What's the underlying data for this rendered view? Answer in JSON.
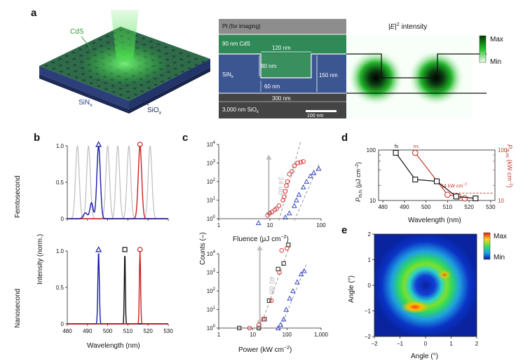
{
  "panels": {
    "a": {
      "letter": "a",
      "device": {
        "cds_label": "CdS",
        "sinx_label": "SiN",
        "sinx_sub": "x",
        "siox_label": "SiO",
        "siox_sub": "x"
      },
      "sem": {
        "pt_label": "Pt (for imaging)",
        "cds_label": "90 nm CdS",
        "w120": "120 nm",
        "h90": "90 nm",
        "h150": "150 nm",
        "w60": "60 nm",
        "sinx_label": "SiN",
        "sinx_sub": "x",
        "w300": "300 nm",
        "sio_label": "3,000 nm SiO",
        "sio_sub": "x",
        "scale_bar": "100 nm"
      },
      "field": {
        "title_pre": "|",
        "title_E": "E",
        "title_post": "|",
        "title_sup": "2",
        "title_rest": " intensity",
        "max": "Max",
        "min": "Min"
      }
    },
    "b": {
      "letter": "b",
      "ylabel": "Intensity (norm.)",
      "row_top": "Femtosecond",
      "row_bottom": "Nanosecond",
      "xlabel": "Wavelength (nm)",
      "xticks": [
        "480",
        "490",
        "500",
        "510",
        "520",
        "530"
      ],
      "yticks": [
        "0",
        "0.5",
        "1.0"
      ],
      "colors": {
        "blue": "#1a1aa8",
        "red": "#cc1f1f",
        "black": "#111111",
        "gray": "#bdbdbd"
      },
      "femto_peaks": {
        "blue_nm": 495.5,
        "red_nm": 516,
        "gray_nm": [
          485,
          490.5,
          500,
          505,
          510.5,
          521
        ]
      },
      "nano_peaks": {
        "blue_nm": 495.5,
        "black_nm": 508.5,
        "red_nm": 516
      }
    },
    "c": {
      "letter": "c",
      "ylabel": "Counts (–)",
      "top": {
        "xlabel_pre": "Fluence (μJ cm",
        "xlabel_sup": "−2",
        "xlabel_post": ")",
        "xticks": [
          "1",
          "10",
          "100"
        ],
        "yticks": [
          "0",
          "1",
          "2",
          "3",
          "4"
        ],
        "ann": "24 dB",
        "red_points": [
          [
            9,
            1.5
          ],
          [
            10,
            2.0
          ],
          [
            11,
            2.3
          ],
          [
            12.5,
            3.0
          ],
          [
            13.5,
            3.5
          ],
          [
            15,
            5
          ],
          [
            18,
            10
          ],
          [
            19,
            15
          ],
          [
            20,
            30
          ],
          [
            21,
            60
          ],
          [
            22,
            100
          ],
          [
            24,
            250
          ],
          [
            27,
            350
          ],
          [
            30,
            700
          ],
          [
            35,
            1000
          ],
          [
            40,
            1100
          ],
          [
            45,
            1200
          ]
        ],
        "blue_points": [
          [
            6,
            0.6
          ],
          [
            20,
            1.2
          ],
          [
            24,
            2
          ],
          [
            30,
            5
          ],
          [
            33,
            10
          ],
          [
            37,
            20
          ],
          [
            45,
            50
          ],
          [
            52,
            100
          ],
          [
            62,
            200
          ],
          [
            72,
            300
          ],
          [
            90,
            500
          ]
        ]
      },
      "bottom": {
        "xlabel_pre": "Power (kW cm",
        "xlabel_sup": "−2",
        "xlabel_post": ")",
        "xticks": [
          "1",
          "10",
          "100",
          "1,000"
        ],
        "yticks": [
          "0",
          "1",
          "2",
          "3",
          "4"
        ],
        "ann": "40 dB",
        "red_points": [
          [
            8,
            1
          ],
          [
            15,
            1.5
          ],
          [
            20,
            3
          ],
          [
            35,
            30
          ],
          [
            60,
            1000
          ],
          [
            70,
            15000
          ],
          [
            100,
            20000
          ]
        ],
        "blue_points": [
          [
            55,
            1
          ],
          [
            65,
            1.5
          ],
          [
            80,
            3
          ],
          [
            95,
            10
          ],
          [
            120,
            40
          ],
          [
            150,
            100
          ],
          [
            200,
            300
          ],
          [
            260,
            800
          ],
          [
            320,
            1200
          ]
        ],
        "black_points": [
          [
            4,
            1
          ],
          [
            15,
            1
          ],
          [
            22,
            3
          ],
          [
            30,
            30
          ],
          [
            55,
            1500
          ],
          [
            80,
            3000
          ],
          [
            110,
            30000
          ]
        ]
      }
    },
    "d": {
      "letter": "d",
      "xlabel": "Wavelength (nm)",
      "xticks": [
        "480",
        "490",
        "500",
        "510",
        "520",
        "530"
      ],
      "yl_label_pre": "P",
      "yl_label_sub": "th,fs",
      "yl_label_post": " (μJ cm",
      "yl_label_sup": "−2",
      "yl_label_end": ")",
      "yr_label_pre": "P",
      "yr_label_sub": "th,ns",
      "yr_label_post": " (kW cm",
      "yr_label_sup": "−2",
      "yr_label_end": ")",
      "yl_ticks": [
        "10",
        "100"
      ],
      "yr_ticks": [
        "10",
        "100"
      ],
      "fs_tag": "fs",
      "ns_tag": "ns",
      "ann_pre": "14 kW cm",
      "ann_sup": "−2",
      "fs_points": [
        [
          486,
          88
        ],
        [
          495,
          26
        ],
        [
          505,
          24
        ],
        [
          514,
          12
        ],
        [
          523,
          11
        ]
      ],
      "ns_points": [
        [
          495,
          88
        ],
        [
          510,
          13
        ],
        [
          515,
          12
        ],
        [
          518,
          11
        ]
      ]
    },
    "e": {
      "letter": "e",
      "xlabel": "Angle (°)",
      "ylabel": "Angle (°)",
      "ticks": [
        "−2",
        "−1",
        "0",
        "1",
        "2"
      ],
      "max": "Max",
      "min": "Min"
    }
  }
}
